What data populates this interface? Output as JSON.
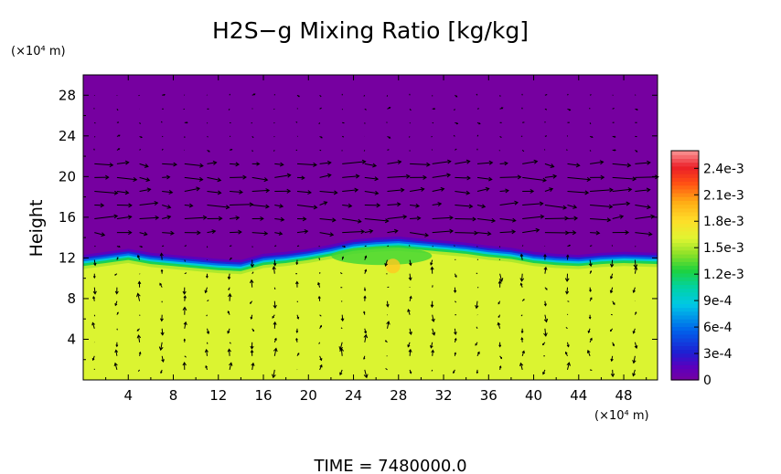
{
  "chart_data": {
    "type": "heatmap",
    "title": "H2S−g Mixing Ratio [kg/kg]",
    "ylabel": "Height",
    "x_unit": "(×10⁴ m)",
    "y_unit": "(×10⁴ m)",
    "footer": "TIME  =  7480000.0",
    "xlim": [
      0,
      51
    ],
    "ylim": [
      0,
      30
    ],
    "x_ticks": [
      4,
      8,
      12,
      16,
      20,
      24,
      28,
      32,
      36,
      40,
      44,
      48
    ],
    "y_ticks": [
      4,
      8,
      12,
      16,
      20,
      24,
      28
    ],
    "colorbar": {
      "ticks": [
        "0",
        "3e-4",
        "6e-4",
        "9e-4",
        "1.2e-3",
        "1.5e-3",
        "1.8e-3",
        "2.1e-3",
        "2.4e-3"
      ],
      "values": [
        0,
        0.0003,
        0.0006,
        0.0009,
        0.0012,
        0.0015,
        0.0018,
        0.0021,
        0.0024
      ],
      "max": 0.0026
    },
    "field": {
      "low_layer_value": 0.0016,
      "upper_value": 0.0,
      "interface_height_profile": [
        [
          0,
          12.3
        ],
        [
          2,
          12.6
        ],
        [
          4,
          12.9
        ],
        [
          6,
          12.5
        ],
        [
          8,
          12.3
        ],
        [
          10,
          12.1
        ],
        [
          12,
          11.9
        ],
        [
          14,
          11.8
        ],
        [
          16,
          12.4
        ],
        [
          18,
          12.6
        ],
        [
          20,
          12.9
        ],
        [
          22,
          13.3
        ],
        [
          24,
          13.8
        ],
        [
          26,
          14.0
        ],
        [
          28,
          14.1
        ],
        [
          30,
          13.9
        ],
        [
          32,
          13.7
        ],
        [
          34,
          13.5
        ],
        [
          36,
          13.2
        ],
        [
          38,
          13.0
        ],
        [
          40,
          12.6
        ],
        [
          42,
          12.4
        ],
        [
          44,
          12.3
        ],
        [
          46,
          12.5
        ],
        [
          48,
          12.6
        ],
        [
          51,
          12.5
        ]
      ],
      "green_patch_value": 0.0013
    }
  }
}
